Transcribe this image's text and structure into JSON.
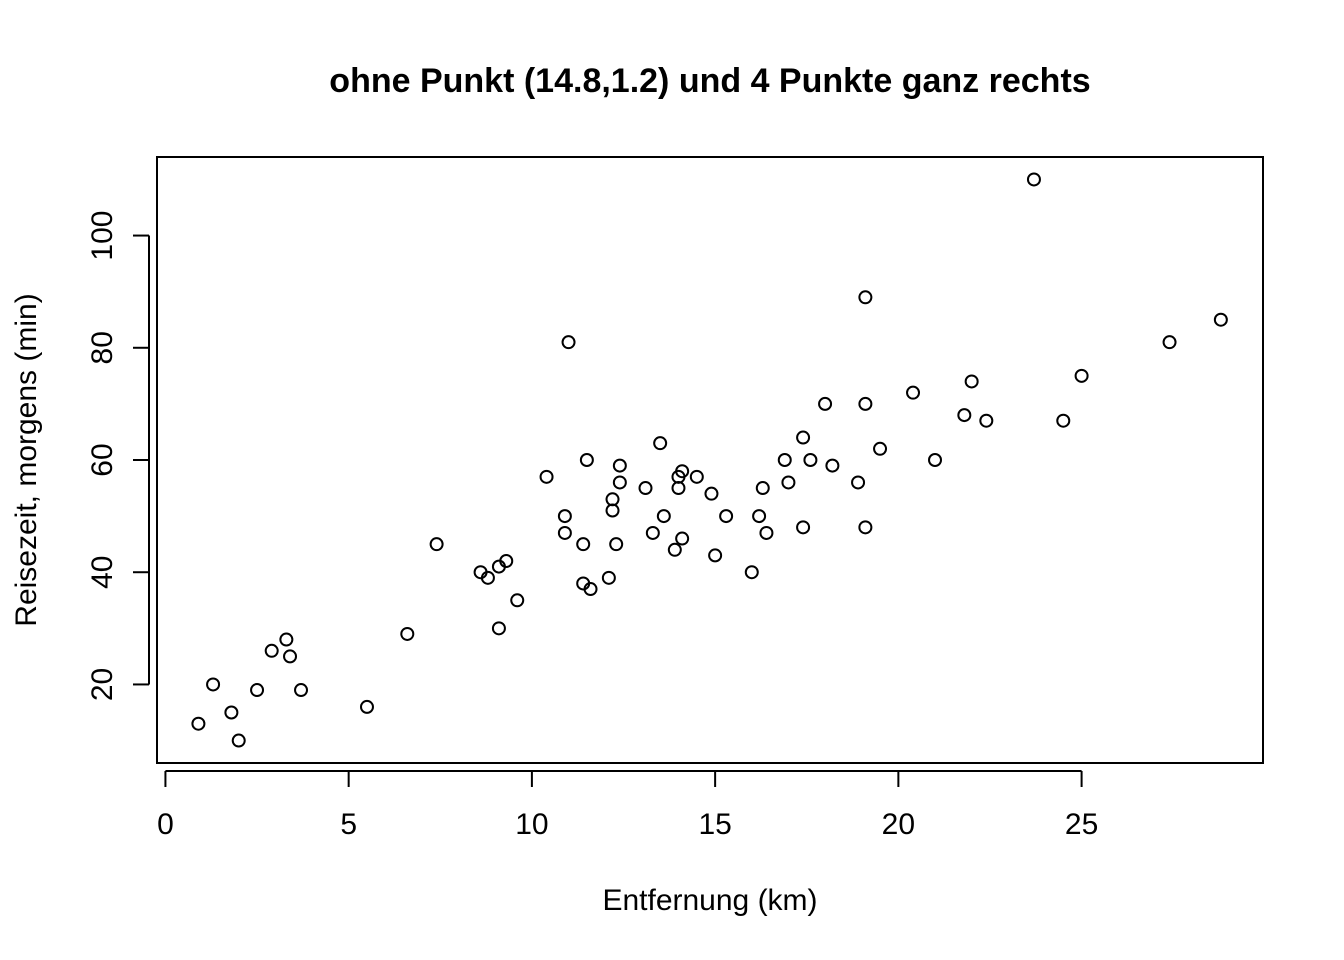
{
  "chart_data": {
    "type": "scatter",
    "title": "ohne Punkt (14.8,1.2) und 4 Punkte ganz rechts",
    "xlabel": "Entfernung (km)",
    "ylabel": "Reisezeit, morgens (min)",
    "xlim": [
      -0.23,
      29.95
    ],
    "ylim": [
      6,
      114
    ],
    "xticks": [
      0,
      5,
      10,
      15,
      20,
      25
    ],
    "yticks": [
      20,
      40,
      60,
      80,
      100
    ],
    "x_tick_labels": [
      "0",
      "5",
      "10",
      "15",
      "20",
      "25"
    ],
    "y_tick_labels": [
      "20",
      "40",
      "60",
      "80",
      "100"
    ],
    "grid": false,
    "points": [
      {
        "x": 0.9,
        "y": 13
      },
      {
        "x": 1.3,
        "y": 20
      },
      {
        "x": 1.8,
        "y": 15
      },
      {
        "x": 2.0,
        "y": 10
      },
      {
        "x": 2.5,
        "y": 19
      },
      {
        "x": 2.9,
        "y": 26
      },
      {
        "x": 3.3,
        "y": 28
      },
      {
        "x": 3.4,
        "y": 25
      },
      {
        "x": 3.7,
        "y": 19
      },
      {
        "x": 5.5,
        "y": 16
      },
      {
        "x": 6.6,
        "y": 29
      },
      {
        "x": 7.4,
        "y": 45
      },
      {
        "x": 8.6,
        "y": 40
      },
      {
        "x": 8.8,
        "y": 39
      },
      {
        "x": 9.1,
        "y": 41
      },
      {
        "x": 9.1,
        "y": 30
      },
      {
        "x": 9.3,
        "y": 42
      },
      {
        "x": 9.6,
        "y": 35
      },
      {
        "x": 10.4,
        "y": 57
      },
      {
        "x": 10.9,
        "y": 50
      },
      {
        "x": 10.9,
        "y": 47
      },
      {
        "x": 11.0,
        "y": 81
      },
      {
        "x": 11.4,
        "y": 45
      },
      {
        "x": 11.4,
        "y": 38
      },
      {
        "x": 11.5,
        "y": 60
      },
      {
        "x": 11.6,
        "y": 37
      },
      {
        "x": 12.1,
        "y": 39
      },
      {
        "x": 12.2,
        "y": 53
      },
      {
        "x": 12.2,
        "y": 51
      },
      {
        "x": 12.3,
        "y": 45
      },
      {
        "x": 12.4,
        "y": 59
      },
      {
        "x": 12.4,
        "y": 56
      },
      {
        "x": 13.1,
        "y": 55
      },
      {
        "x": 13.3,
        "y": 47
      },
      {
        "x": 13.5,
        "y": 63
      },
      {
        "x": 13.6,
        "y": 50
      },
      {
        "x": 13.9,
        "y": 44
      },
      {
        "x": 14.0,
        "y": 57
      },
      {
        "x": 14.0,
        "y": 55
      },
      {
        "x": 14.1,
        "y": 58
      },
      {
        "x": 14.1,
        "y": 46
      },
      {
        "x": 14.5,
        "y": 57
      },
      {
        "x": 14.9,
        "y": 54
      },
      {
        "x": 15.0,
        "y": 43
      },
      {
        "x": 15.3,
        "y": 50
      },
      {
        "x": 16.0,
        "y": 40
      },
      {
        "x": 16.2,
        "y": 50
      },
      {
        "x": 16.3,
        "y": 55
      },
      {
        "x": 16.4,
        "y": 47
      },
      {
        "x": 16.9,
        "y": 60
      },
      {
        "x": 17.0,
        "y": 56
      },
      {
        "x": 17.4,
        "y": 64
      },
      {
        "x": 17.4,
        "y": 48
      },
      {
        "x": 17.6,
        "y": 60
      },
      {
        "x": 18.0,
        "y": 70
      },
      {
        "x": 18.2,
        "y": 59
      },
      {
        "x": 18.9,
        "y": 56
      },
      {
        "x": 19.1,
        "y": 89
      },
      {
        "x": 19.1,
        "y": 70
      },
      {
        "x": 19.1,
        "y": 48
      },
      {
        "x": 19.5,
        "y": 62
      },
      {
        "x": 20.4,
        "y": 72
      },
      {
        "x": 21.0,
        "y": 60
      },
      {
        "x": 21.8,
        "y": 68
      },
      {
        "x": 22.0,
        "y": 74
      },
      {
        "x": 22.4,
        "y": 67
      },
      {
        "x": 23.7,
        "y": 110
      },
      {
        "x": 24.5,
        "y": 67
      },
      {
        "x": 25.0,
        "y": 75
      },
      {
        "x": 27.4,
        "y": 81
      },
      {
        "x": 28.8,
        "y": 85
      }
    ]
  }
}
